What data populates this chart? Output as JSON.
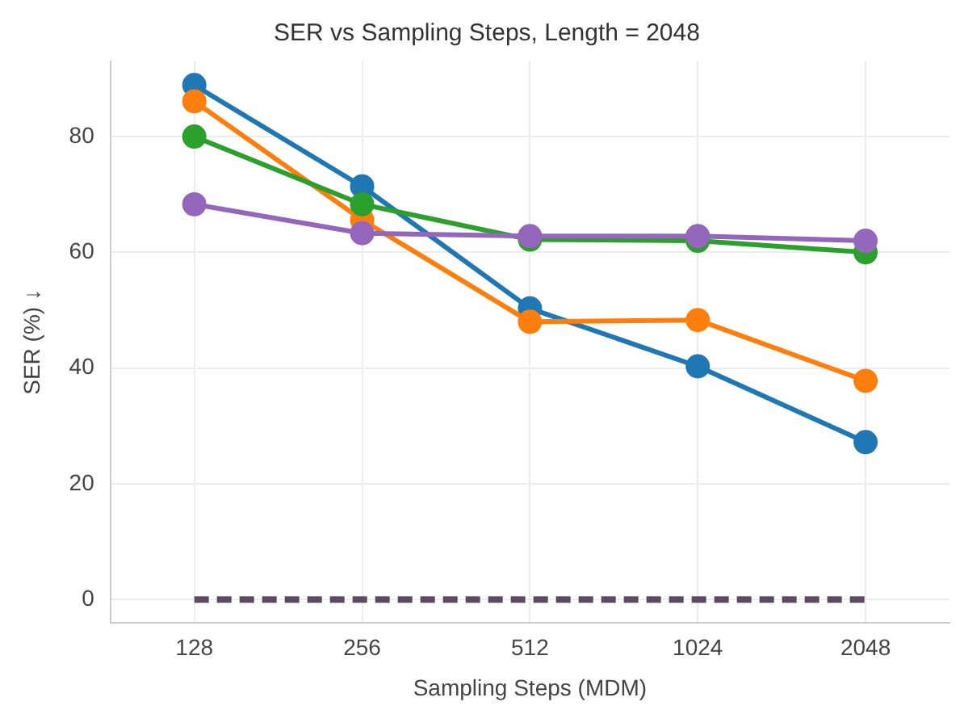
{
  "chart_data": {
    "type": "line",
    "title": "SER vs Sampling Steps, Length = 2048",
    "xlabel": "Sampling Steps (MDM)",
    "ylabel": "SER (%) ↓",
    "categories": [
      "128",
      "256",
      "512",
      "1024",
      "2048"
    ],
    "series": [
      {
        "color": "#1f77b4",
        "values": [
          88.9,
          71.4,
          50.3,
          40.3,
          27.2
        ]
      },
      {
        "color": "#ff7f0e",
        "values": [
          86.1,
          65.6,
          48,
          48.3,
          37.8
        ]
      },
      {
        "color": "#2ca02c",
        "values": [
          80,
          68.3,
          62.2,
          62,
          60
        ]
      },
      {
        "color": "#9467bd",
        "values": [
          68.3,
          63.3,
          62.8,
          62.8,
          62
        ]
      },
      {
        "color": "#5e4a63",
        "values": [
          0,
          0,
          0,
          0,
          0
        ],
        "line_style": "dashed",
        "marker": "none"
      }
    ],
    "ylim": [
      -4,
      93
    ],
    "yticks": [
      0,
      20,
      40,
      60,
      80
    ],
    "grid": true,
    "legend": false,
    "marker": "circle",
    "line_style": "solid"
  }
}
